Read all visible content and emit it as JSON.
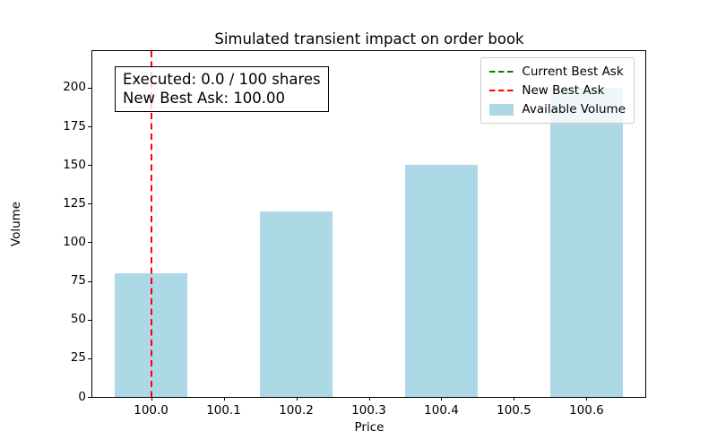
{
  "chart_data": {
    "type": "bar",
    "title": "Simulated transient impact on order book",
    "xlabel": "Price",
    "ylabel": "Volume",
    "x": [
      100.0,
      100.2,
      100.4,
      100.6
    ],
    "values": [
      80,
      120,
      150,
      200
    ],
    "bar_width": 0.1,
    "bar_color": "#ADD8E6",
    "xlim": [
      99.919,
      100.681
    ],
    "ylim": [
      0,
      223.7
    ],
    "xtick_values": [
      100.0,
      100.1,
      100.2,
      100.3,
      100.4,
      100.5,
      100.6
    ],
    "xtick_labels": [
      "100.0",
      "100.1",
      "100.2",
      "100.3",
      "100.4",
      "100.5",
      "100.6"
    ],
    "ytick_values": [
      0,
      25,
      50,
      75,
      100,
      125,
      150,
      175,
      200
    ],
    "ytick_labels": [
      "0",
      "25",
      "50",
      "75",
      "100",
      "125",
      "150",
      "175",
      "200"
    ],
    "grid": false,
    "legend_position": "upper right",
    "vlines": [
      {
        "x": 100.0,
        "color": "#FF0000",
        "style": "dashed",
        "label": "New Best Ask"
      }
    ],
    "annotation_lines": [
      "Executed: 0.0 / 100 shares",
      "New Best Ask: 100.00"
    ],
    "legend_items": [
      {
        "label": "Current Best Ask",
        "swatch": "dashed-line",
        "color": "#008000"
      },
      {
        "label": "New Best Ask",
        "swatch": "dashed-line",
        "color": "#FF0000"
      },
      {
        "label": "Available Volume",
        "swatch": "patch",
        "color": "#ADD8E6"
      }
    ]
  }
}
